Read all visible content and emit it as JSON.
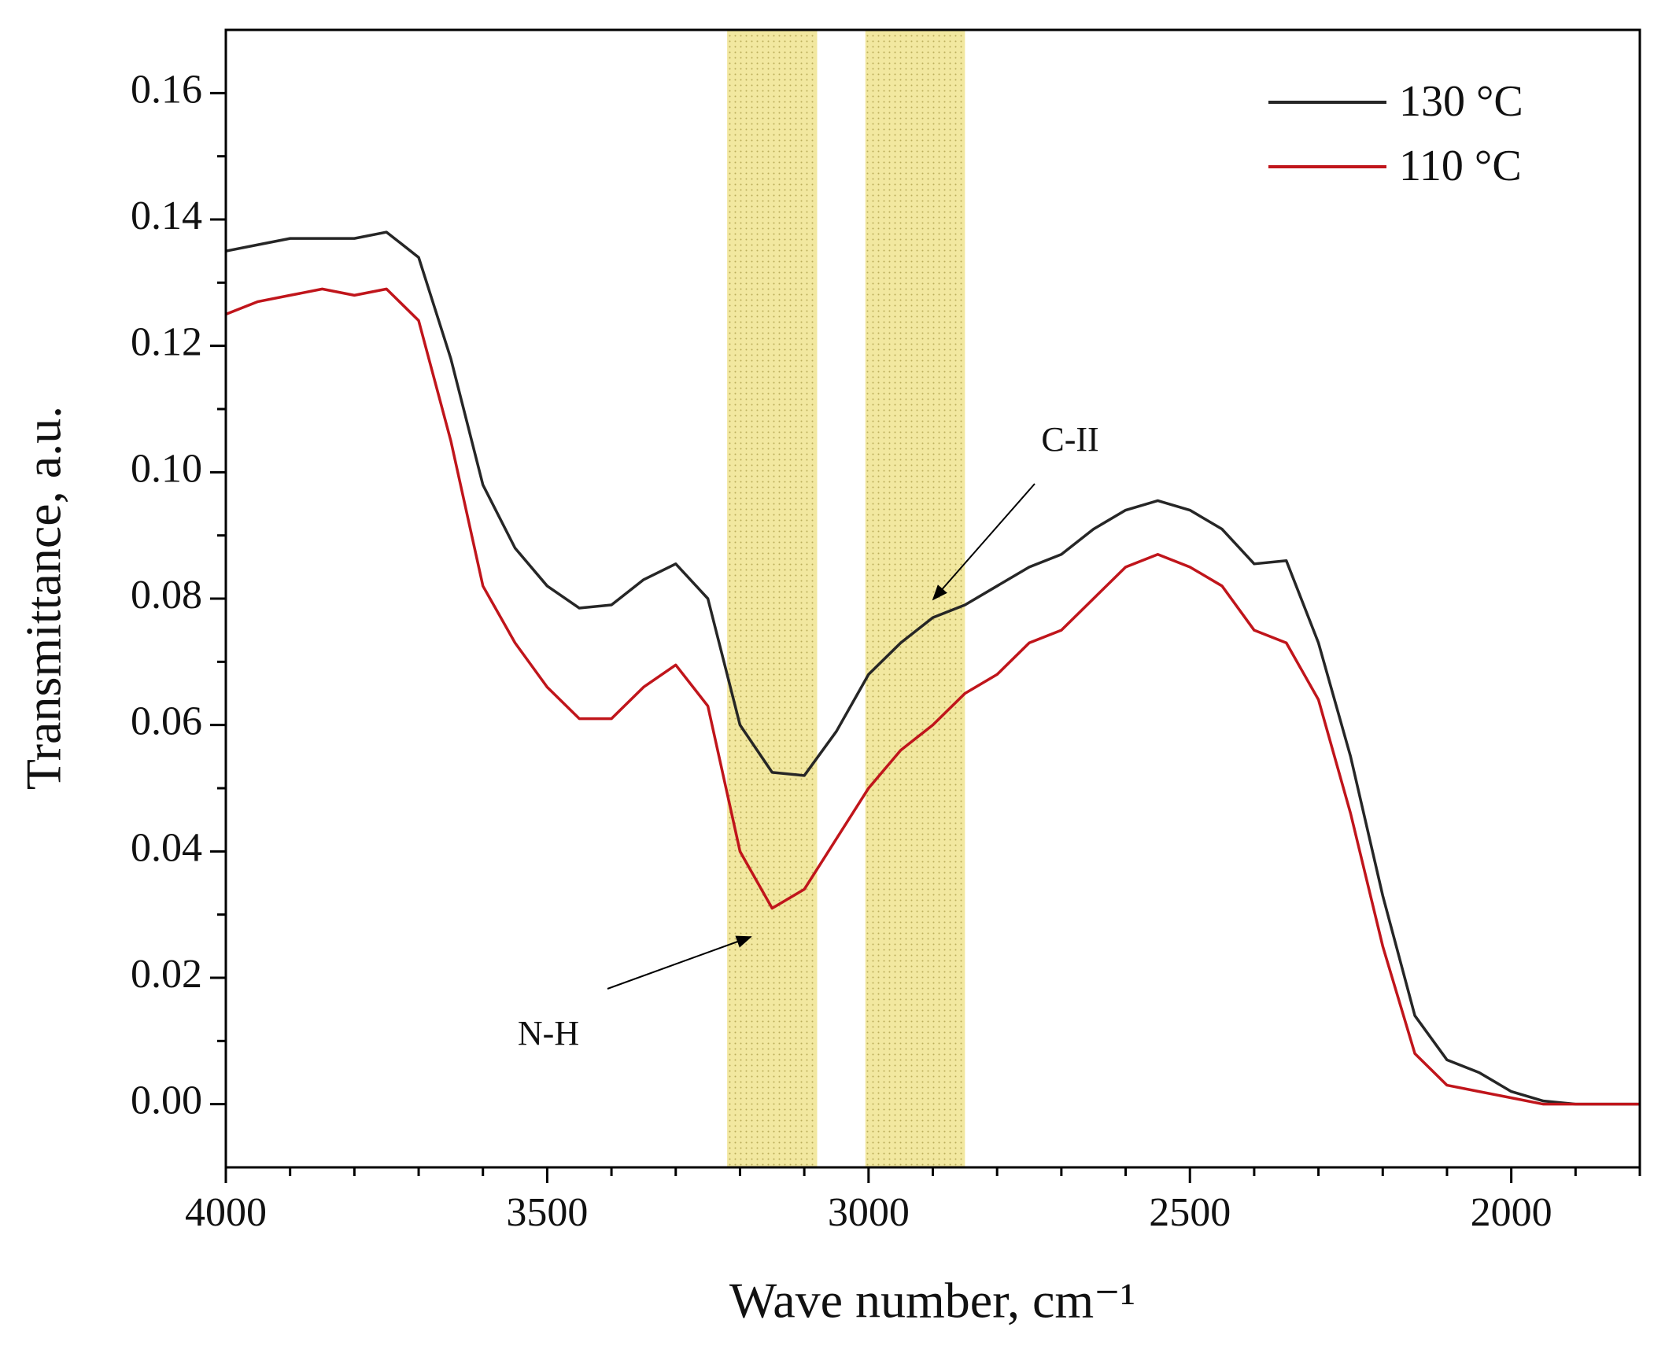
{
  "chart_data": {
    "type": "line",
    "x_label": "Wave number, cm⁻¹",
    "y_label": "Transmittance, a.u.",
    "x": [
      4000,
      3950,
      3900,
      3850,
      3800,
      3750,
      3700,
      3650,
      3600,
      3550,
      3500,
      3450,
      3400,
      3350,
      3300,
      3250,
      3200,
      3150,
      3100,
      3050,
      3000,
      2950,
      2900,
      2850,
      2800,
      2750,
      2700,
      2650,
      2600,
      2550,
      2500,
      2450,
      2400,
      2350,
      2300,
      2250,
      2200,
      2150,
      2100,
      2050,
      2000,
      1950,
      1900,
      1850,
      1800
    ],
    "series": [
      {
        "name": "130 °C",
        "color": "#262626",
        "values": [
          0.135,
          0.136,
          0.137,
          0.137,
          0.137,
          0.138,
          0.134,
          0.118,
          0.098,
          0.088,
          0.082,
          0.0785,
          0.079,
          0.083,
          0.0855,
          0.08,
          0.06,
          0.0525,
          0.052,
          0.059,
          0.068,
          0.073,
          0.077,
          0.079,
          0.082,
          0.085,
          0.087,
          0.091,
          0.094,
          0.0955,
          0.094,
          0.091,
          0.0855,
          0.086,
          0.073,
          0.055,
          0.033,
          0.014,
          0.007,
          0.005,
          0.002,
          0.0005,
          0,
          0,
          0
        ]
      },
      {
        "name": "110 °C",
        "color": "#c0151b",
        "values": [
          0.125,
          0.127,
          0.128,
          0.129,
          0.128,
          0.129,
          0.124,
          0.105,
          0.082,
          0.073,
          0.066,
          0.061,
          0.061,
          0.066,
          0.0695,
          0.063,
          0.04,
          0.031,
          0.034,
          0.042,
          0.05,
          0.056,
          0.06,
          0.065,
          0.068,
          0.073,
          0.075,
          0.08,
          0.085,
          0.087,
          0.085,
          0.082,
          0.075,
          0.073,
          0.064,
          0.046,
          0.025,
          0.008,
          0.003,
          0.002,
          0.001,
          0,
          0,
          0,
          0
        ]
      }
    ],
    "bands": [
      [
        3220,
        3080
      ],
      [
        3005,
        2850
      ]
    ],
    "band_color": "#f2e8a0",
    "annotations": [
      "N-H",
      "C-II"
    ],
    "xlim": [
      4000,
      1800
    ],
    "ylim": [
      -0.01,
      0.17
    ],
    "xticks": [
      4000,
      3500,
      3000,
      2500,
      2000
    ],
    "yticks": [
      {
        "value": 0,
        "label": "0.00"
      },
      {
        "value": 0.02,
        "label": "0.02"
      },
      {
        "value": 0.04,
        "label": "0.04"
      },
      {
        "value": 0.06,
        "label": "0.06"
      },
      {
        "value": 0.08,
        "label": "0.08"
      },
      {
        "value": 0.1,
        "label": "0.10"
      },
      {
        "value": 0.12,
        "label": "0.12"
      },
      {
        "value": 0.14,
        "label": "0.14"
      },
      {
        "value": 0.16,
        "label": "0.16"
      }
    ],
    "legend": "upper right"
  }
}
